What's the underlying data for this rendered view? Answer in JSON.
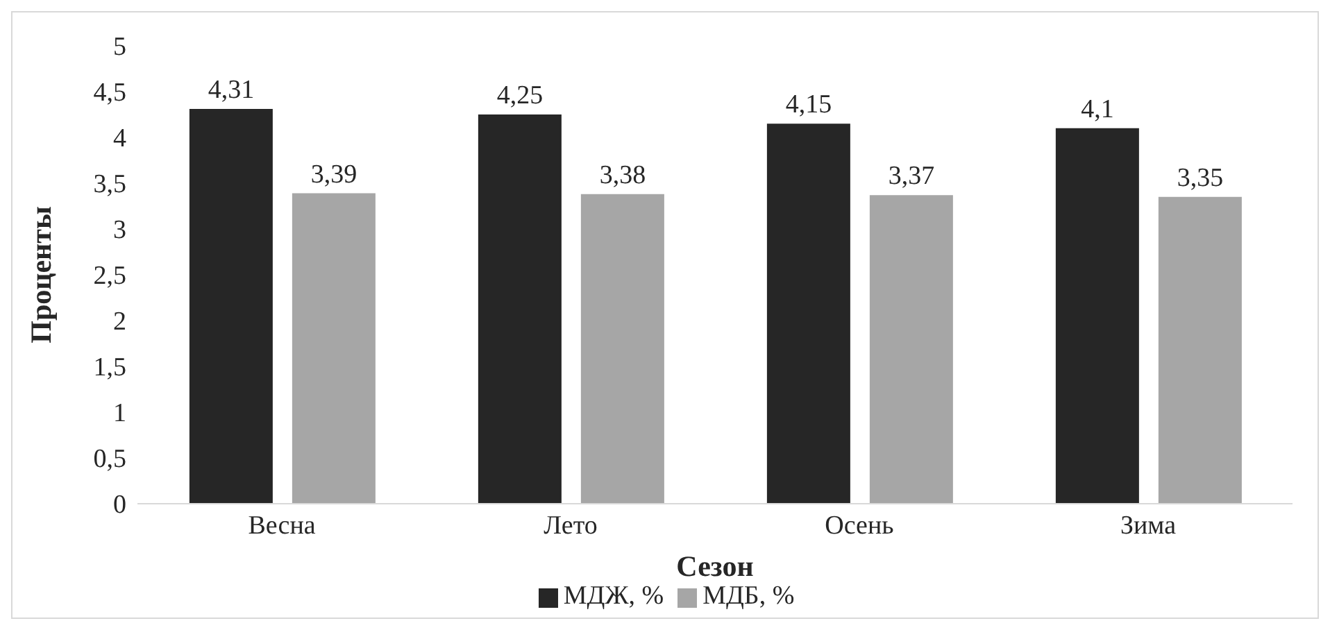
{
  "chart_data": {
    "type": "bar",
    "xlabel": "Сезон",
    "ylabel": "Проценты",
    "categories": [
      "Весна",
      "Лето",
      "Осень",
      "Зима"
    ],
    "series": [
      {
        "name": "МДЖ, %",
        "color": "#262626",
        "values": [
          4.31,
          4.25,
          4.15,
          4.1
        ],
        "value_labels": [
          "4,31",
          "4,25",
          "4,15",
          "4,1"
        ]
      },
      {
        "name": "МДБ, %",
        "color": "#a6a6a6",
        "values": [
          3.39,
          3.38,
          3.37,
          3.35
        ],
        "value_labels": [
          "3,39",
          "3,38",
          "3,37",
          "3,35"
        ]
      }
    ],
    "ylim": [
      0,
      5
    ],
    "yticks": [
      0,
      {
        "value": 0.5,
        "label": "0,5"
      },
      1,
      {
        "value": 1.5,
        "label": "1,5"
      },
      2,
      {
        "value": 2.5,
        "label": "2,5"
      },
      3,
      {
        "value": 3.5,
        "label": "3,5"
      },
      4,
      {
        "value": 4.5,
        "label": "4,5"
      },
      5
    ],
    "grid": false,
    "legend": "bottom"
  }
}
